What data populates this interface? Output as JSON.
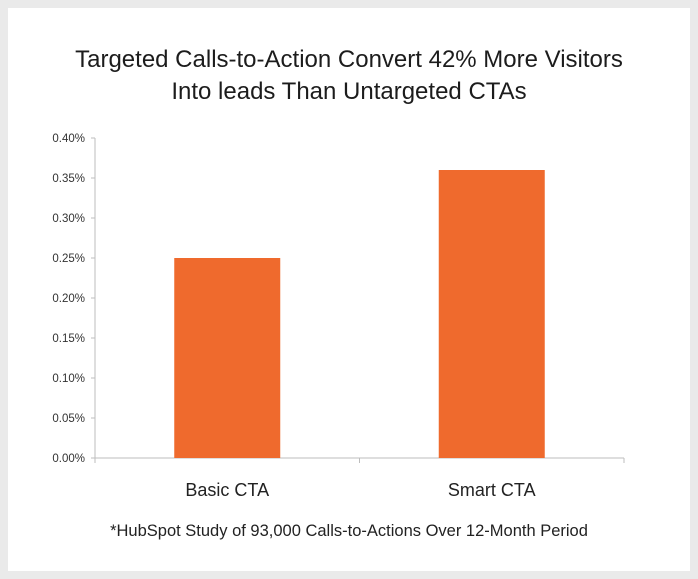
{
  "chart_data": {
    "type": "bar",
    "title_lines": [
      "Targeted Calls-to-Action Convert 42% More Visitors",
      "Into leads Than Untargeted CTAs"
    ],
    "categories": [
      "Basic CTA",
      "Smart CTA"
    ],
    "values": [
      0.25,
      0.36
    ],
    "ylim": [
      0,
      0.4
    ],
    "yticks": [
      0.0,
      0.05,
      0.1,
      0.15,
      0.2,
      0.25,
      0.3,
      0.35,
      0.4
    ],
    "ytick_labels": [
      "0.00%",
      "0.05%",
      "0.10%",
      "0.15%",
      "0.20%",
      "0.25%",
      "0.30%",
      "0.35%",
      "0.40%"
    ],
    "bar_color": "#ef6a2d",
    "grid": false,
    "legend": "none",
    "footnote": "*HubSpot Study of 93,000 Calls-to-Actions Over 12-Month Period"
  }
}
